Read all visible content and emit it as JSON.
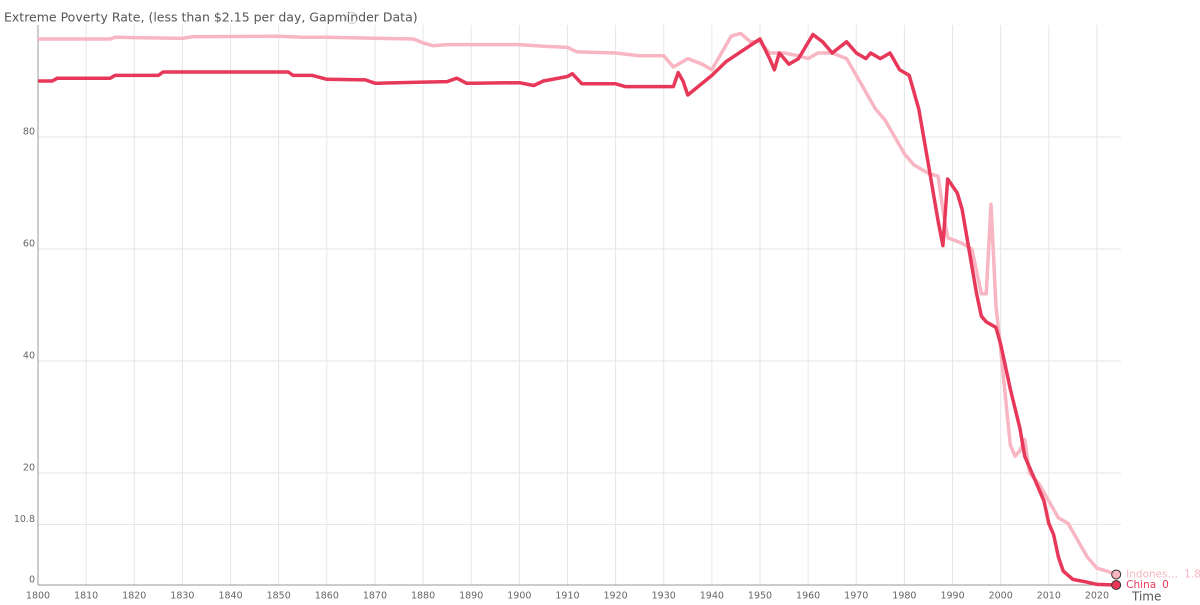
{
  "chart_data": {
    "type": "line",
    "title": "Extreme Poverty Rate, (less than $2.15 per day, Gapminder Data)",
    "x_label": "Time",
    "xlim": [
      1800,
      2025
    ],
    "ylim": [
      0,
      100
    ],
    "xticks": [
      1800,
      1810,
      1820,
      1830,
      1840,
      1850,
      1860,
      1870,
      1880,
      1890,
      1900,
      1910,
      1920,
      1930,
      1940,
      1950,
      1960,
      1970,
      1980,
      1990,
      2000,
      2010,
      2020
    ],
    "yticks": [
      0,
      10.8,
      20,
      40,
      60,
      80
    ],
    "grid": true,
    "series": [
      {
        "name": "Indones…",
        "color": "#f7b6c1",
        "x": [
          1800,
          1815,
          1816,
          1830,
          1832,
          1850,
          1855,
          1860,
          1878,
          1880,
          1882,
          1885,
          1900,
          1905,
          1910,
          1912,
          1920,
          1925,
          1930,
          1932,
          1935,
          1938,
          1940,
          1942,
          1944,
          1946,
          1948,
          1950,
          1952,
          1955,
          1958,
          1960,
          1962,
          1965,
          1968,
          1970,
          1972,
          1974,
          1976,
          1978,
          1980,
          1982,
          1985,
          1987,
          1988,
          1989,
          1992,
          1994,
          1996,
          1997,
          1998,
          1999,
          2000,
          2002,
          2003,
          2004,
          2005,
          2006,
          2008,
          2010,
          2012,
          2014,
          2016,
          2018,
          2020,
          2022,
          2024
        ],
        "values": [
          97.5,
          97.5,
          97.8,
          97.6,
          97.9,
          98,
          97.8,
          97.8,
          97.5,
          96.8,
          96.3,
          96.5,
          96.5,
          96.2,
          96,
          95.2,
          95,
          94.5,
          94.5,
          92.5,
          94,
          93,
          92,
          95,
          98,
          98.5,
          97,
          97,
          95,
          95,
          94.5,
          94,
          95,
          95,
          94,
          91,
          88,
          85,
          83,
          80,
          77,
          75,
          73.5,
          73,
          67,
          62,
          61,
          60,
          52,
          52,
          68,
          50,
          42,
          25,
          23,
          24,
          26,
          20,
          18,
          15,
          12,
          11,
          8,
          5,
          3,
          2.5,
          1.88
        ]
      },
      {
        "name": "China",
        "color": "#e8385a",
        "x": [
          1800,
          1803,
          1804,
          1815,
          1816,
          1825,
          1826,
          1852,
          1853,
          1857,
          1860,
          1868,
          1870,
          1871,
          1880,
          1885,
          1887,
          1889,
          1890,
          1900,
          1903,
          1905,
          1910,
          1911,
          1913,
          1920,
          1922,
          1932,
          1933,
          1934,
          1935,
          1940,
          1943,
          1950,
          1952,
          1953,
          1954,
          1956,
          1958,
          1961,
          1963,
          1965,
          1968,
          1970,
          1972,
          1973,
          1975,
          1977,
          1979,
          1981,
          1983,
          1985,
          1986,
          1987,
          1988,
          1989,
          1991,
          1992,
          1993,
          1995,
          1996,
          1997,
          1999,
          2000,
          2002,
          2004,
          2005,
          2007,
          2009,
          2010,
          2011,
          2012,
          2013,
          2015,
          2018,
          2020,
          2024
        ],
        "values": [
          90,
          90,
          90.5,
          90.5,
          91,
          91,
          91.6,
          91.6,
          91,
          91,
          90.3,
          90.2,
          89.6,
          89.6,
          89.8,
          89.9,
          90.5,
          89.6,
          89.6,
          89.7,
          89.2,
          90,
          90.8,
          91.3,
          89.5,
          89.5,
          89,
          89,
          91.5,
          90,
          87.5,
          91,
          93.5,
          97.5,
          94,
          92,
          95,
          93,
          94,
          98.3,
          97,
          95,
          97,
          95,
          94,
          95,
          94,
          95,
          92,
          91,
          85,
          75,
          70,
          65,
          60.6,
          72.5,
          70,
          67,
          62,
          52,
          48,
          47,
          46,
          43,
          35,
          28,
          23,
          19,
          15,
          11,
          9,
          5,
          2.5,
          1,
          0.5,
          0.1,
          0
        ]
      }
    ]
  }
}
